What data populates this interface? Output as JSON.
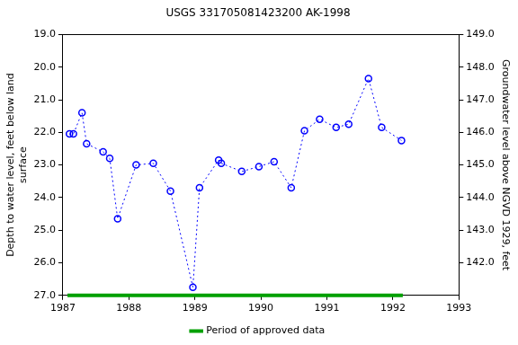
{
  "chart_data": {
    "type": "line",
    "title": "USGS 331705081423200 AK-1998",
    "ylabel": [
      "Depth to water level, feet below land",
      "surface"
    ],
    "y2label": "Groundwater level above NGVD 1929, feet",
    "x": [
      1987.1,
      1987.16,
      1987.29,
      1987.36,
      1987.61,
      1987.71,
      1987.83,
      1988.11,
      1988.37,
      1988.63,
      1988.97,
      1989.07,
      1989.36,
      1989.4,
      1989.71,
      1989.97,
      1990.2,
      1990.46,
      1990.66,
      1990.89,
      1991.14,
      1991.33,
      1991.63,
      1991.83,
      1992.13
    ],
    "series": [
      {
        "color": "#0000ff",
        "marker": "circle",
        "line_style": "dotted",
        "values": [
          22.05,
          22.05,
          21.4,
          22.35,
          22.6,
          22.8,
          24.65,
          23.0,
          22.95,
          23.8,
          26.75,
          23.7,
          22.85,
          22.95,
          23.2,
          23.05,
          22.9,
          23.7,
          21.95,
          21.6,
          21.85,
          21.75,
          20.35,
          21.85,
          22.25
        ]
      }
    ],
    "approved_period": {
      "name": "Period of approved data",
      "color": "#00a000",
      "x": [
        1987.07,
        1992.15
      ]
    },
    "xlim": [
      1987,
      1993
    ],
    "xticks": [
      1987,
      1988,
      1989,
      1990,
      1991,
      1992,
      1993
    ],
    "ylim": [
      27,
      19
    ],
    "yticks": [
      {
        "value": 19,
        "label": "19.0"
      },
      {
        "value": 20,
        "label": "20.0"
      },
      {
        "value": 21,
        "label": "21.0"
      },
      {
        "value": 22,
        "label": "22.0"
      },
      {
        "value": 23,
        "label": "23.0"
      },
      {
        "value": 24,
        "label": "24.0"
      },
      {
        "value": 25,
        "label": "25.0"
      },
      {
        "value": 26,
        "label": "26.0"
      },
      {
        "value": 27,
        "label": "27.0"
      }
    ],
    "y2lim": [
      141,
      149
    ],
    "y2ticks": [
      {
        "value": 142,
        "label": "142.0"
      },
      {
        "value": 143,
        "label": "143.0"
      },
      {
        "value": 144,
        "label": "144.0"
      },
      {
        "value": 145,
        "label": "145.0"
      },
      {
        "value": 146,
        "label": "146.0"
      },
      {
        "value": 147,
        "label": "147.0"
      },
      {
        "value": 148,
        "label": "148.0"
      },
      {
        "value": 149,
        "label": "149.0"
      }
    ],
    "grid": false,
    "legend": "bottom"
  }
}
